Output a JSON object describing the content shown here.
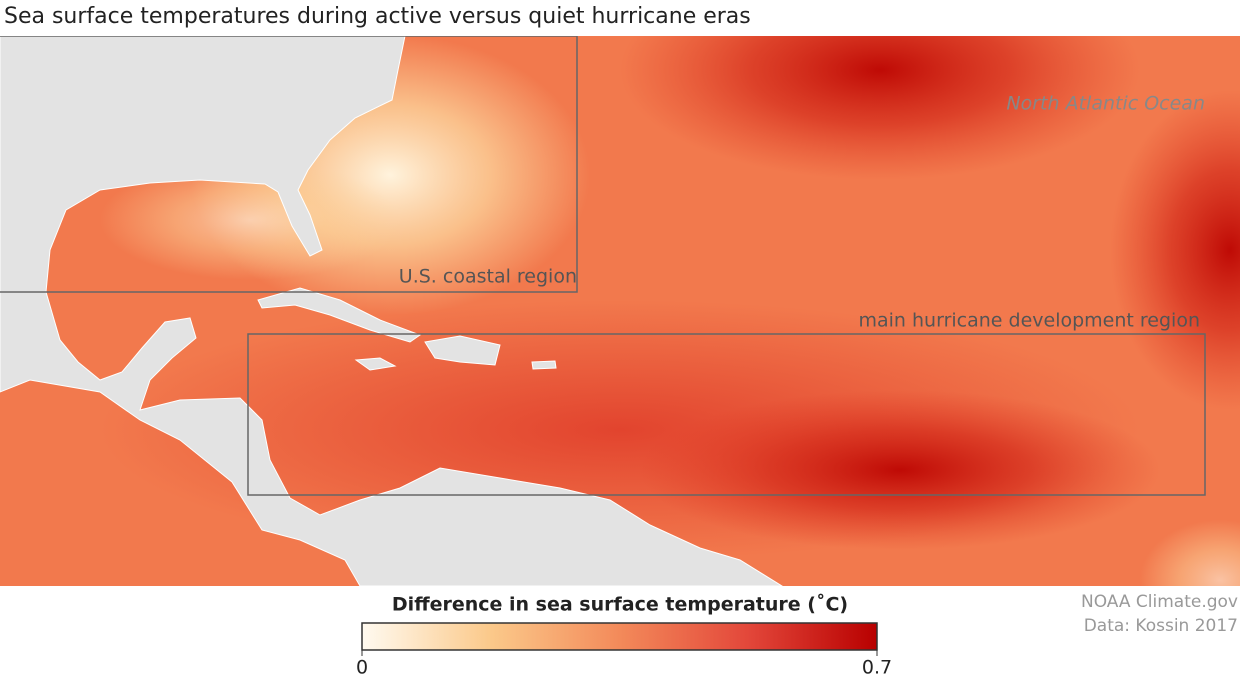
{
  "title": "Sea surface temperatures during active versus quiet hurricane eras",
  "map_labels": {
    "ocean": "North Atlantic Ocean",
    "coastal_region": "U.S. coastal region",
    "development_region": "main hurricane development region"
  },
  "colorbar": {
    "title": "Difference in sea surface temperature (˚C)",
    "lim": [
      0,
      0.7
    ],
    "ticks": [
      0,
      0.7
    ],
    "colors": [
      "#fffaf0",
      "#fbc98a",
      "#f38a5a",
      "#e3473a",
      "#b80000"
    ]
  },
  "credits": [
    "NOAA Climate.gov",
    "Data: Kossin 2017"
  ]
}
